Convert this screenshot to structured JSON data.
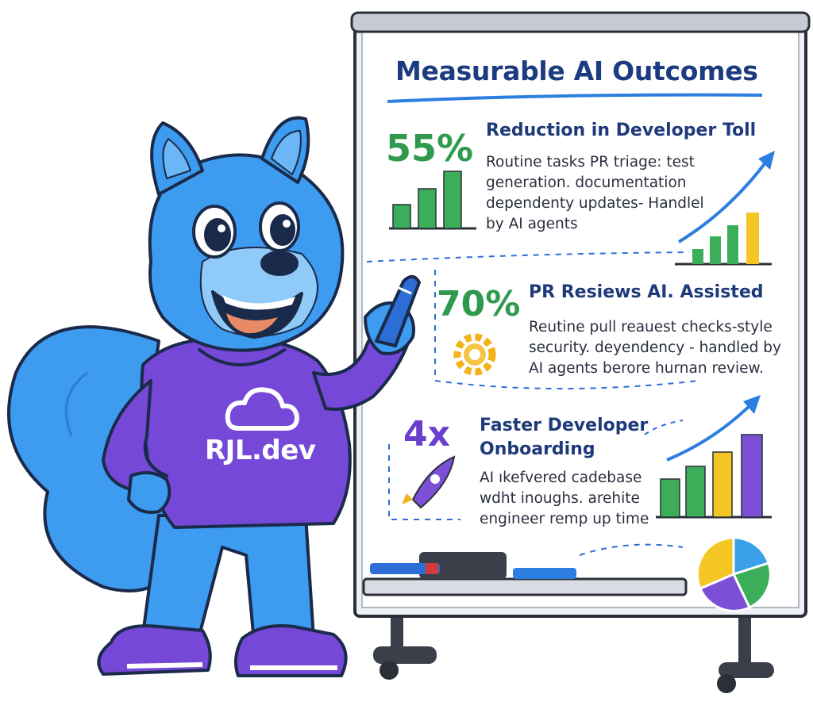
{
  "board": {
    "title": "Measurable AI Outcomes",
    "sections": [
      {
        "stat": "55%",
        "heading": "Reduction in Developer Toll",
        "lines": [
          "Routine tasks   PR triage: test",
          "generation. documentation",
          "dependenty updates- Handlel",
          "by AI agents"
        ]
      },
      {
        "stat": "70%",
        "heading": "PR Resiews AI. Assisted",
        "lines": [
          "Reutine pull reauest checks-style",
          "security. deyendency - handled by",
          "AI agents berore hurnan review."
        ]
      },
      {
        "stat": "4x",
        "heading_lines": [
          "Faster Developer",
          "Onboarding"
        ],
        "lines": [
          "AI ıkefvered cadebase",
          "wdht inoughs. arehite",
          "engineer remp up time"
        ]
      }
    ]
  },
  "mascot": {
    "hoodie_text": "RJL.dev"
  },
  "colors": {
    "mascot_blue": "#3d9bf0",
    "hoodie_purple": "#7548d8",
    "title_navy": "#1d3b80",
    "stat_green": "#2f9a4d",
    "stat_purple": "#6a3fd0",
    "bar_green": "#3cae5a",
    "bar_yellow": "#f3c623",
    "bar_purple": "#7b4fd6",
    "arrow_blue": "#2c7fe0"
  },
  "icons": [
    "bar-chart-icon",
    "gear-icon",
    "rocket-icon",
    "pie-chart-icon",
    "cloud-logo-icon",
    "marker-icon"
  ]
}
